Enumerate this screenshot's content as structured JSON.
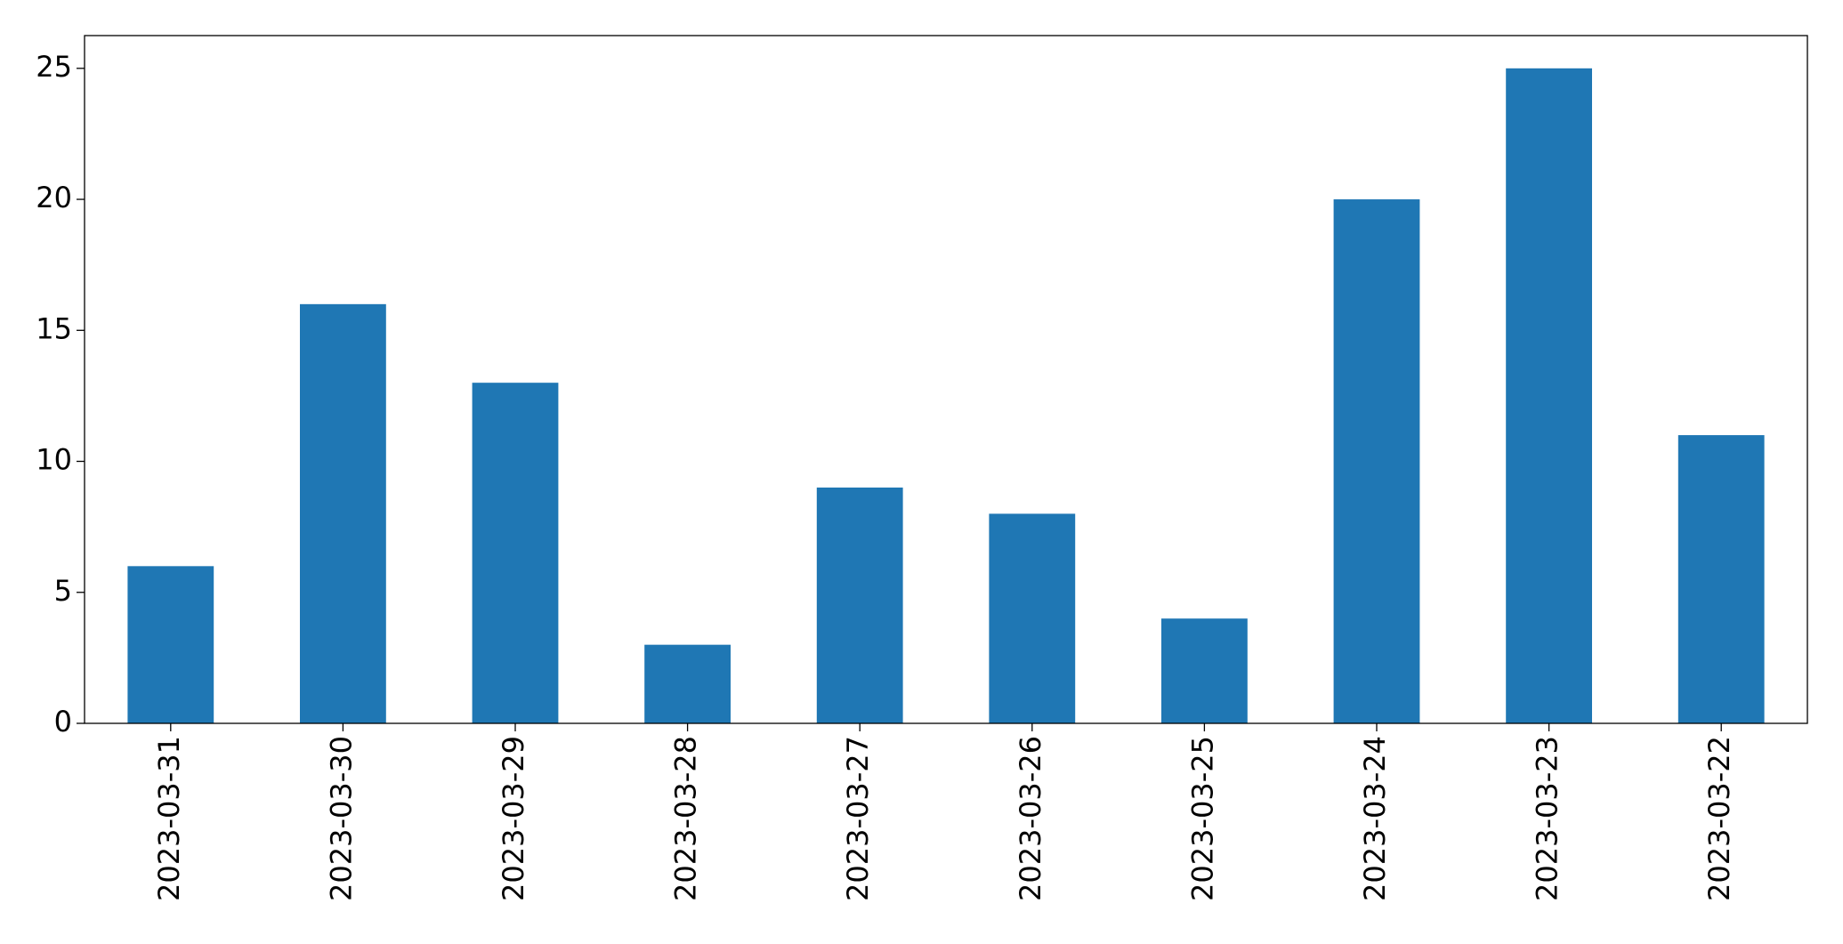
{
  "chart_data": {
    "type": "bar",
    "categories": [
      "2023-03-31",
      "2023-03-30",
      "2023-03-29",
      "2023-03-28",
      "2023-03-27",
      "2023-03-26",
      "2023-03-25",
      "2023-03-24",
      "2023-03-23",
      "2023-03-22"
    ],
    "values": [
      6,
      16,
      13,
      3,
      9,
      8,
      4,
      20,
      25,
      11
    ],
    "color": "#1f77b4",
    "ylim": [
      0,
      26.25
    ],
    "yticks": [
      0,
      5,
      10,
      15,
      20,
      25
    ],
    "grid": false
  }
}
